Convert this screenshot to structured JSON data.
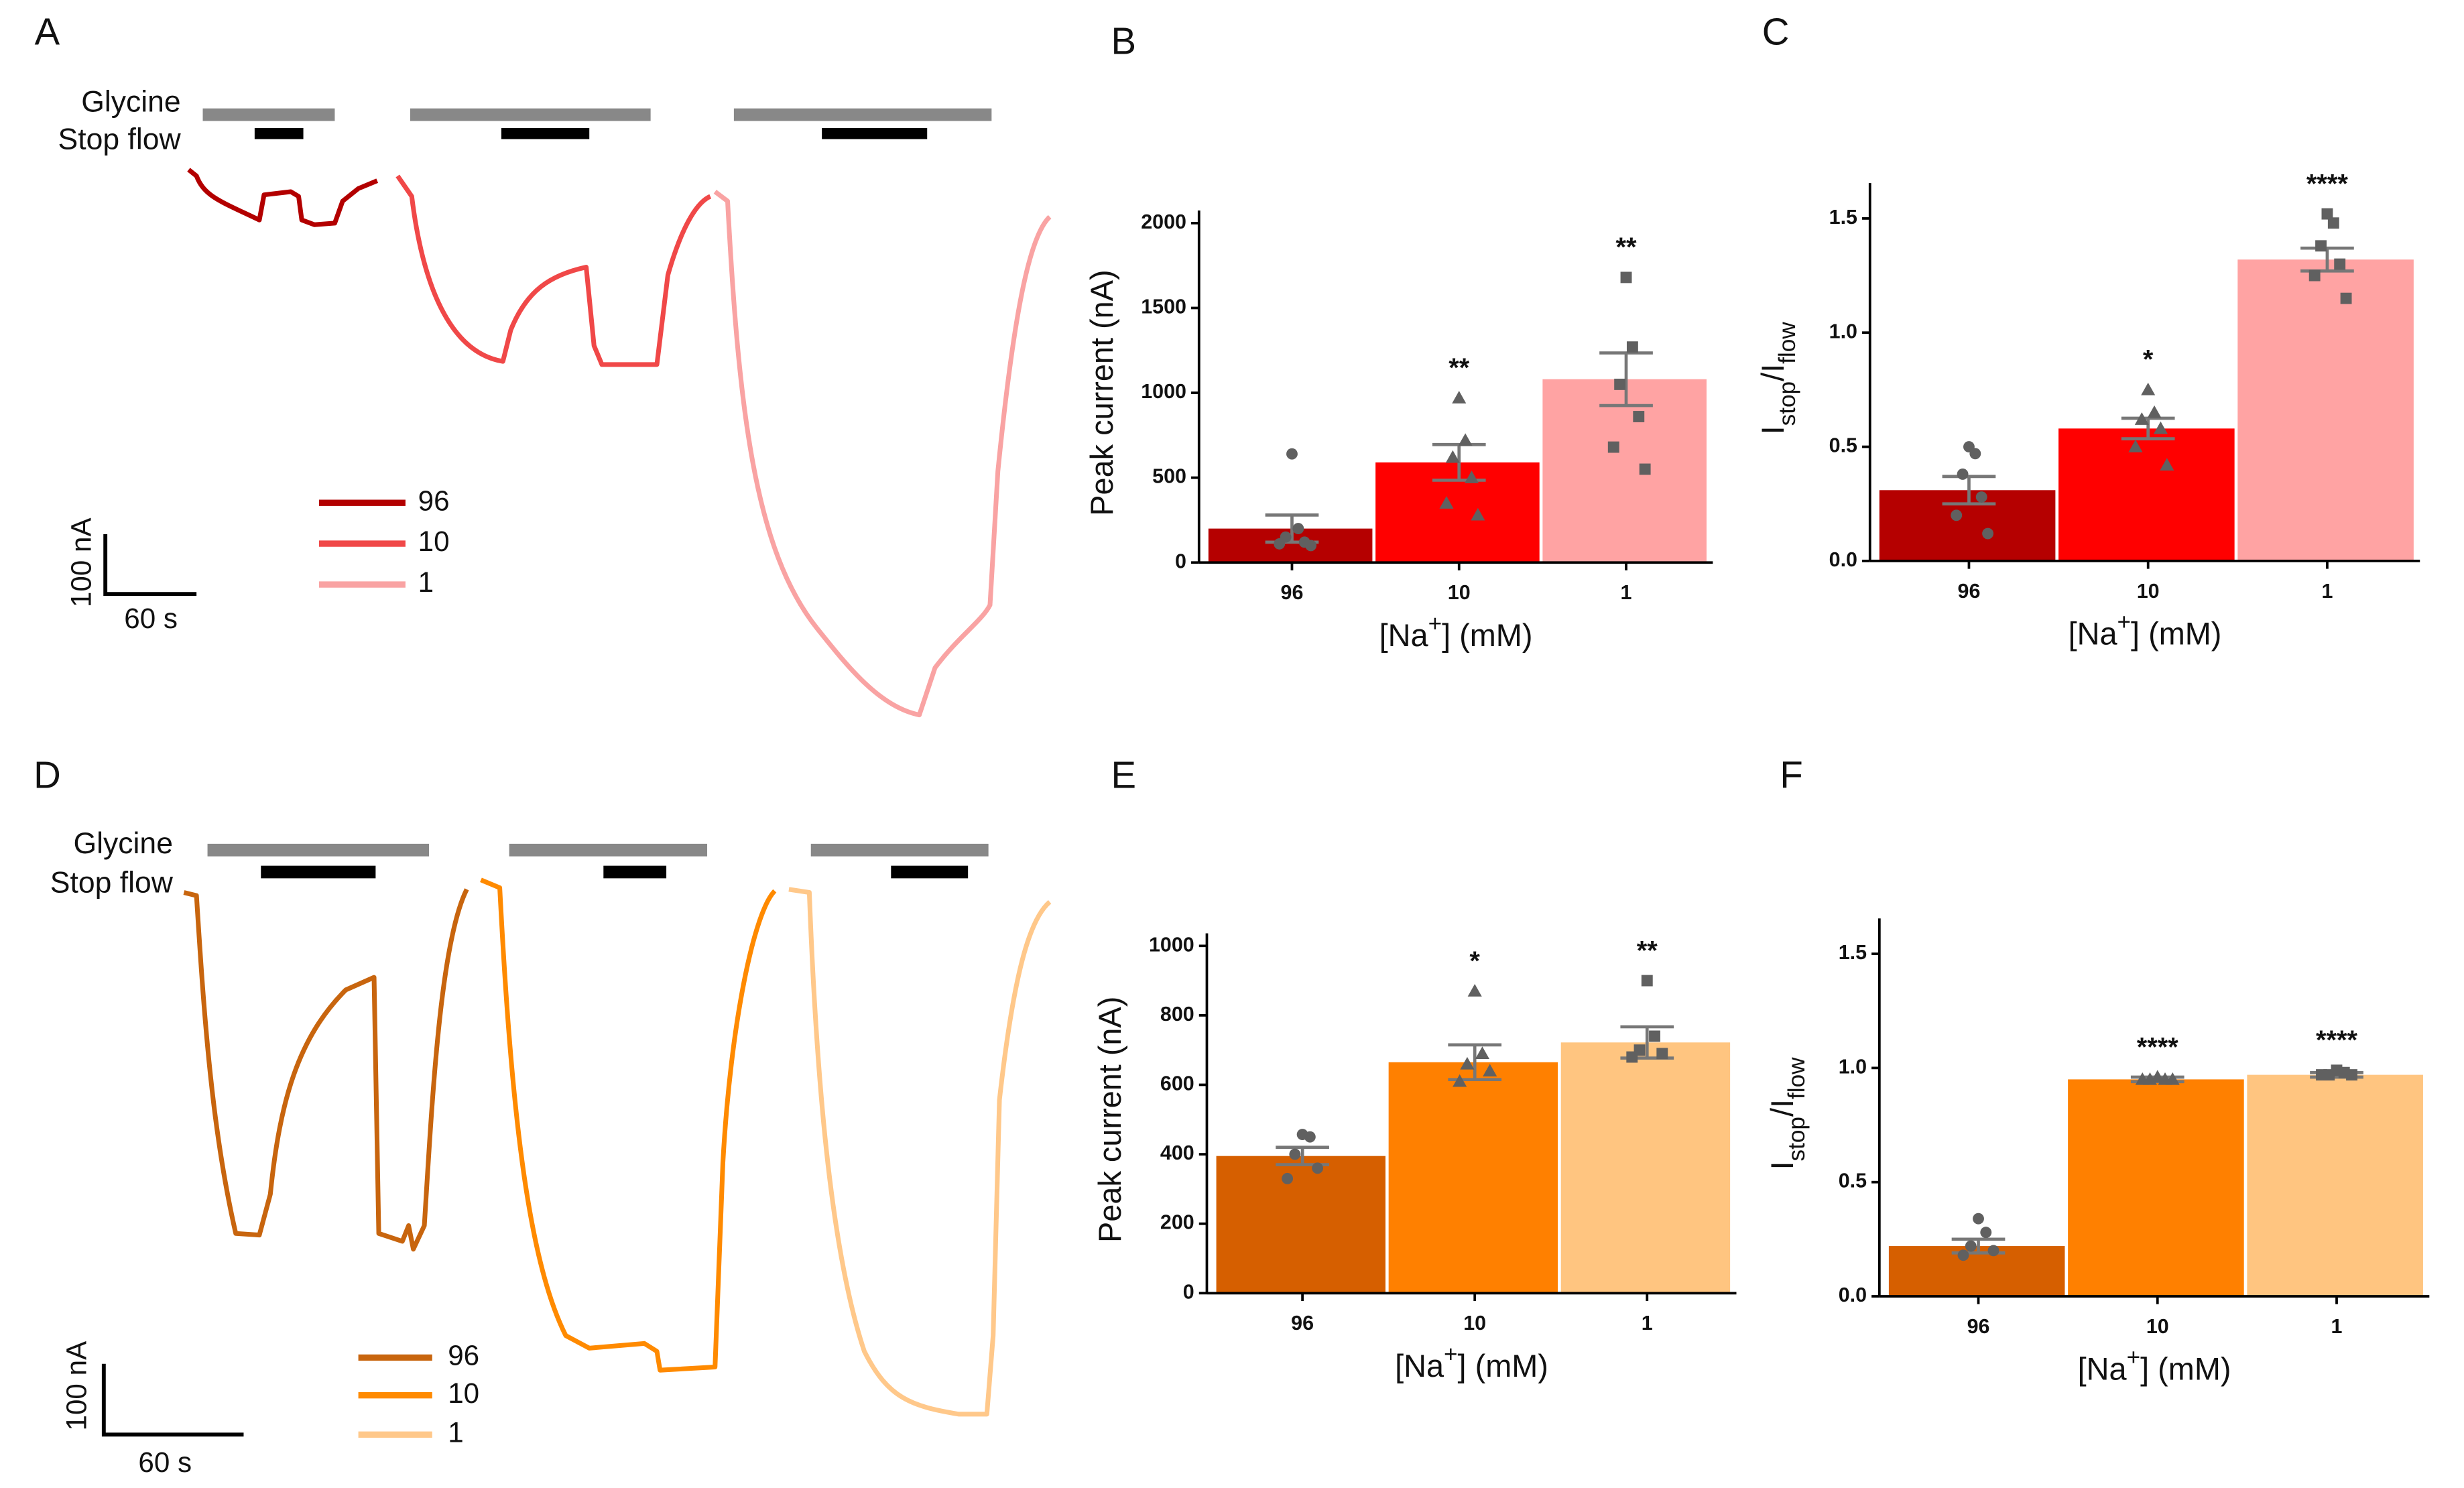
{
  "chart_data": [
    {
      "type": "trace",
      "panel_label": "A",
      "protocol_labels": [
        "Glycine",
        "Stop flow"
      ],
      "series": [
        {
          "name": "96",
          "color": "#b30000"
        },
        {
          "name": "10",
          "color": "#f04848"
        },
        {
          "name": "1",
          "color": "#f9a3a3"
        }
      ],
      "scale_bar": [
        "100 nA",
        "60 s"
      ]
    },
    {
      "type": "bar",
      "panel_label": "B",
      "categories": [
        "96",
        "10",
        "1"
      ],
      "values": [
        200,
        590,
        1080
      ],
      "errors": [
        80,
        105,
        155
      ],
      "points": [
        [
          640,
          200,
          150,
          120,
          110,
          100
        ],
        [
          970,
          720,
          620,
          500,
          350,
          280
        ],
        [
          1680,
          1270,
          1050,
          860,
          680,
          550
        ]
      ],
      "markers": [
        "circle",
        "triangle",
        "square"
      ],
      "annotations": [
        null,
        "**",
        "**"
      ],
      "colors": [
        "#b50000",
        "#ff0000",
        "#ffa3a3"
      ],
      "ylabel": [
        {
          "text": "Peak current (nA)"
        }
      ],
      "xlabel": [
        {
          "text": "[Na"
        },
        {
          "text": "+",
          "sup": true
        },
        {
          "text": "] (mM)"
        }
      ],
      "ylim": [
        0,
        2000
      ],
      "yticks": [
        0,
        500,
        1000,
        1500,
        2000
      ]
    },
    {
      "type": "bar",
      "panel_label": "C",
      "categories": [
        "96",
        "10",
        "1"
      ],
      "values": [
        0.31,
        0.58,
        1.32
      ],
      "errors": [
        0.06,
        0.045,
        0.05
      ],
      "points": [
        [
          0.5,
          0.47,
          0.38,
          0.28,
          0.2,
          0.12
        ],
        [
          0.75,
          0.65,
          0.62,
          0.58,
          0.5,
          0.42
        ],
        [
          1.52,
          1.48,
          1.38,
          1.3,
          1.25,
          1.15
        ]
      ],
      "markers": [
        "circle",
        "triangle",
        "square"
      ],
      "annotations": [
        null,
        "*",
        "****"
      ],
      "colors": [
        "#b50000",
        "#ff0000",
        "#ffa3a3"
      ],
      "ylabel": [
        {
          "text": "I"
        },
        {
          "text": "stop",
          "sub": true
        },
        {
          "text": "/I"
        },
        {
          "text": "flow",
          "sub": true
        }
      ],
      "xlabel": [
        {
          "text": "[Na"
        },
        {
          "text": "+",
          "sup": true
        },
        {
          "text": "] (mM)"
        }
      ],
      "ylim": [
        0,
        1.6
      ],
      "yticks": [
        {
          "value": 0,
          "label": "0.0"
        },
        0.5,
        {
          "value": 1,
          "label": "1.0"
        },
        1.5
      ]
    },
    {
      "type": "trace",
      "panel_label": "D",
      "protocol_labels": [
        "Glycine",
        "Stop flow"
      ],
      "series": [
        {
          "name": "96",
          "color": "#c8650e"
        },
        {
          "name": "10",
          "color": "#ff8a00"
        },
        {
          "name": "1",
          "color": "#ffc88a"
        }
      ],
      "scale_bar": [
        "100 nA",
        "60 s"
      ]
    },
    {
      "type": "bar",
      "panel_label": "E",
      "categories": [
        "96",
        "10",
        "1"
      ],
      "values": [
        395,
        665,
        722
      ],
      "errors": [
        25,
        50,
        45
      ],
      "points": [
        [
          457,
          450,
          400,
          360,
          330
        ],
        [
          870,
          690,
          660,
          640,
          610
        ],
        [
          900,
          740,
          700,
          690,
          680
        ]
      ],
      "markers": [
        "circle",
        "triangle",
        "square"
      ],
      "annotations": [
        null,
        "*",
        "**"
      ],
      "colors": [
        "#d65f00",
        "#ff8000",
        "#ffc580"
      ],
      "ylabel": [
        {
          "text": "Peak current (nA)"
        }
      ],
      "xlabel": [
        {
          "text": "[Na"
        },
        {
          "text": "+",
          "sup": true
        },
        {
          "text": "] (mM)"
        }
      ],
      "ylim": [
        0,
        1000
      ],
      "yticks": [
        0,
        200,
        400,
        600,
        800,
        1000
      ]
    },
    {
      "type": "bar",
      "panel_label": "F",
      "categories": [
        "96",
        "10",
        "1"
      ],
      "values": [
        0.22,
        0.95,
        0.97
      ],
      "errors": [
        0.03,
        0.01,
        0.01
      ],
      "points": [
        [
          0.34,
          0.28,
          0.22,
          0.2,
          0.18
        ],
        [
          0.96,
          0.95,
          0.95,
          0.95,
          0.95
        ],
        [
          0.99,
          0.98,
          0.97,
          0.97,
          0.97
        ]
      ],
      "markers": [
        "circle",
        "triangle",
        "square"
      ],
      "annotations": [
        null,
        "****",
        "****"
      ],
      "colors": [
        "#d65f00",
        "#ff8000",
        "#ffc580"
      ],
      "ylabel": [
        {
          "text": "I"
        },
        {
          "text": "stop",
          "sub": true
        },
        {
          "text": "/I"
        },
        {
          "text": "flow",
          "sub": true
        }
      ],
      "xlabel": [
        {
          "text": "[Na"
        },
        {
          "text": "+",
          "sup": true
        },
        {
          "text": "] (mM)"
        }
      ],
      "ylim": [
        0,
        1.6
      ],
      "yticks": [
        {
          "value": 0,
          "label": "0.0"
        },
        0.5,
        {
          "value": 1,
          "label": "1.0"
        },
        1.5
      ]
    }
  ]
}
